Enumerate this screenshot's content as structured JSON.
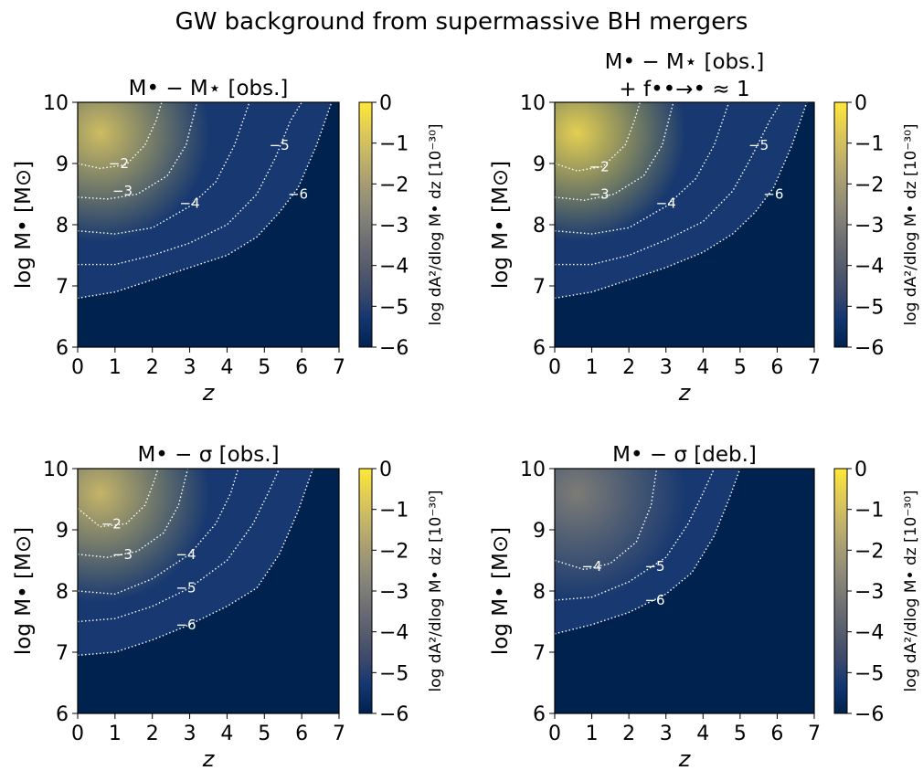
{
  "figure": {
    "suptitle": "GW background from supermassive BH mergers",
    "colormap": [
      "#00224e",
      "#123570",
      "#3b496c",
      "#575d6d",
      "#707173",
      "#8a8779",
      "#a59c74",
      "#c3b369",
      "#e1cc55",
      "#fee838"
    ]
  },
  "chart_data": [
    {
      "type": "heatmap",
      "title": "M• − M⋆ [obs.]",
      "title_line2": "",
      "xlabel": "z",
      "ylabel": "log M• [M⊙]",
      "colorbar_label": "log dA²/dlog M• dz [10⁻³⁰]",
      "xlim": [
        0,
        7
      ],
      "ylim": [
        6,
        10
      ],
      "clim": [
        -6,
        0
      ],
      "xticks": [
        "0",
        "1",
        "2",
        "3",
        "4",
        "5",
        "6",
        "7"
      ],
      "yticks": [
        "6",
        "7",
        "8",
        "9",
        "10"
      ],
      "cbticks": [
        "−6",
        "−5",
        "−4",
        "−3",
        "−2",
        "−1",
        "0"
      ],
      "peak": {
        "z": 0.6,
        "logM": 9.5,
        "value": -1.1
      },
      "contours": [
        {
          "level": "−2",
          "label_at": [
            1.1,
            9.0
          ],
          "points": [
            [
              0,
              9.0
            ],
            [
              0.6,
              8.92
            ],
            [
              1.3,
              8.98
            ],
            [
              1.8,
              9.3
            ],
            [
              2.1,
              9.7
            ],
            [
              2.25,
              10
            ]
          ]
        },
        {
          "level": "−3",
          "label_at": [
            1.2,
            8.55
          ],
          "points": [
            [
              0,
              8.45
            ],
            [
              0.8,
              8.42
            ],
            [
              1.6,
              8.5
            ],
            [
              2.4,
              8.8
            ],
            [
              2.9,
              9.3
            ],
            [
              3.2,
              10
            ]
          ]
        },
        {
          "level": "−4",
          "label_at": [
            3.0,
            8.35
          ],
          "points": [
            [
              0,
              7.9
            ],
            [
              1.0,
              7.85
            ],
            [
              2.0,
              7.95
            ],
            [
              3.0,
              8.3
            ],
            [
              3.7,
              8.7
            ],
            [
              4.2,
              9.3
            ],
            [
              4.6,
              10
            ]
          ]
        },
        {
          "level": "−5",
          "label_at": [
            5.4,
            9.3
          ],
          "points": [
            [
              0,
              7.35
            ],
            [
              1.0,
              7.35
            ],
            [
              2.0,
              7.5
            ],
            [
              3.0,
              7.7
            ],
            [
              4.0,
              8.0
            ],
            [
              4.8,
              8.5
            ],
            [
              5.3,
              9.1
            ],
            [
              5.7,
              9.7
            ],
            [
              6.0,
              10
            ]
          ]
        },
        {
          "level": "−6",
          "label_at": [
            5.9,
            8.5
          ],
          "points": [
            [
              0,
              6.8
            ],
            [
              1.0,
              6.9
            ],
            [
              2.0,
              7.1
            ],
            [
              3.0,
              7.3
            ],
            [
              4.0,
              7.5
            ],
            [
              4.8,
              7.8
            ],
            [
              5.4,
              8.2
            ],
            [
              5.9,
              8.6
            ],
            [
              6.4,
              9.3
            ],
            [
              6.8,
              10
            ]
          ]
        }
      ]
    },
    {
      "type": "heatmap",
      "title": "M• − M⋆ [obs.]",
      "title_line2": "+ f••→• ≈ 1",
      "xlabel": "z",
      "ylabel": "log M• [M⊙]",
      "colorbar_label": "log dA²/dlog M• dz [10⁻³⁰]",
      "xlim": [
        0,
        7
      ],
      "ylim": [
        6,
        10
      ],
      "clim": [
        -6,
        0
      ],
      "xticks": [
        "0",
        "1",
        "2",
        "3",
        "4",
        "5",
        "6",
        "7"
      ],
      "yticks": [
        "6",
        "7",
        "8",
        "9",
        "10"
      ],
      "cbticks": [
        "−6",
        "−5",
        "−4",
        "−3",
        "−2",
        "−1",
        "0"
      ],
      "peak": {
        "z": 0.6,
        "logM": 9.5,
        "value": -0.6
      },
      "contours": [
        {
          "level": "−2",
          "label_at": [
            1.2,
            8.95
          ],
          "points": [
            [
              0,
              9.0
            ],
            [
              0.6,
              8.88
            ],
            [
              1.3,
              8.95
            ],
            [
              1.9,
              9.3
            ],
            [
              2.15,
              9.7
            ],
            [
              2.3,
              10
            ]
          ]
        },
        {
          "level": "−3",
          "label_at": [
            1.2,
            8.5
          ],
          "points": [
            [
              0,
              8.45
            ],
            [
              0.8,
              8.4
            ],
            [
              1.6,
              8.5
            ],
            [
              2.4,
              8.8
            ],
            [
              2.9,
              9.3
            ],
            [
              3.2,
              10
            ]
          ]
        },
        {
          "level": "−4",
          "label_at": [
            3.0,
            8.35
          ],
          "points": [
            [
              0,
              7.9
            ],
            [
              1.0,
              7.85
            ],
            [
              2.0,
              7.95
            ],
            [
              3.0,
              8.3
            ],
            [
              3.8,
              8.75
            ],
            [
              4.3,
              9.3
            ],
            [
              4.7,
              10
            ]
          ]
        },
        {
          "level": "−5",
          "label_at": [
            5.5,
            9.3
          ],
          "points": [
            [
              0,
              7.35
            ],
            [
              1.0,
              7.35
            ],
            [
              2.0,
              7.5
            ],
            [
              3.0,
              7.75
            ],
            [
              4.0,
              8.05
            ],
            [
              4.8,
              8.55
            ],
            [
              5.3,
              9.1
            ],
            [
              5.8,
              9.7
            ],
            [
              6.1,
              10
            ]
          ]
        },
        {
          "level": "−6",
          "label_at": [
            5.9,
            8.5
          ],
          "points": [
            [
              0,
              6.8
            ],
            [
              1.0,
              6.9
            ],
            [
              2.0,
              7.1
            ],
            [
              3.0,
              7.3
            ],
            [
              4.0,
              7.55
            ],
            [
              4.8,
              7.85
            ],
            [
              5.4,
              8.2
            ],
            [
              5.9,
              8.6
            ],
            [
              6.4,
              9.3
            ],
            [
              6.8,
              10
            ]
          ]
        }
      ]
    },
    {
      "type": "heatmap",
      "title": "M• − σ [obs.]",
      "title_line2": "",
      "xlabel": "z",
      "ylabel": "log M• [M⊙]",
      "colorbar_label": "log dA²/dlog M• dz [10⁻³⁰]",
      "xlim": [
        0,
        7
      ],
      "ylim": [
        6,
        10
      ],
      "clim": [
        -6,
        0
      ],
      "xticks": [
        "0",
        "1",
        "2",
        "3",
        "4",
        "5",
        "6",
        "7"
      ],
      "yticks": [
        "6",
        "7",
        "8",
        "9",
        "10"
      ],
      "cbticks": [
        "−6",
        "−5",
        "−4",
        "−3",
        "−2",
        "−1",
        "0"
      ],
      "peak": {
        "z": 0.6,
        "logM": 9.6,
        "value": -1.3
      },
      "contours": [
        {
          "level": "−2",
          "label_at": [
            0.9,
            9.1
          ],
          "points": [
            [
              0,
              9.35
            ],
            [
              0.6,
              9.05
            ],
            [
              1.3,
              9.1
            ],
            [
              1.8,
              9.4
            ],
            [
              2.05,
              9.8
            ],
            [
              2.15,
              10
            ]
          ]
        },
        {
          "level": "−3",
          "label_at": [
            1.2,
            8.6
          ],
          "points": [
            [
              0,
              8.6
            ],
            [
              0.8,
              8.55
            ],
            [
              1.6,
              8.65
            ],
            [
              2.3,
              8.95
            ],
            [
              2.7,
              9.4
            ],
            [
              2.95,
              10
            ]
          ]
        },
        {
          "level": "−4",
          "label_at": [
            2.9,
            8.6
          ],
          "points": [
            [
              0,
              8.0
            ],
            [
              1.0,
              7.95
            ],
            [
              2.0,
              8.2
            ],
            [
              3.0,
              8.6
            ],
            [
              3.7,
              9.1
            ],
            [
              4.1,
              9.6
            ],
            [
              4.3,
              10
            ]
          ]
        },
        {
          "level": "−5",
          "label_at": [
            2.9,
            8.05
          ],
          "points": [
            [
              0,
              7.5
            ],
            [
              1.0,
              7.55
            ],
            [
              2.0,
              7.75
            ],
            [
              3.0,
              8.05
            ],
            [
              4.0,
              8.5
            ],
            [
              4.7,
              9.1
            ],
            [
              5.1,
              9.6
            ],
            [
              5.4,
              10
            ]
          ]
        },
        {
          "level": "−6",
          "label_at": [
            2.9,
            7.45
          ],
          "points": [
            [
              0,
              6.95
            ],
            [
              1.0,
              7.0
            ],
            [
              2.0,
              7.2
            ],
            [
              3.0,
              7.45
            ],
            [
              4.0,
              7.75
            ],
            [
              4.8,
              8.05
            ],
            [
              5.4,
              8.6
            ],
            [
              5.9,
              9.3
            ],
            [
              6.3,
              10
            ]
          ]
        }
      ]
    },
    {
      "type": "heatmap",
      "title": "M• − σ [deb.]",
      "title_line2": "",
      "xlabel": "z",
      "ylabel": "log M• [M⊙]",
      "colorbar_label": "log dA²/dlog M• dz [10⁻³⁰]",
      "xlim": [
        0,
        7
      ],
      "ylim": [
        6,
        10
      ],
      "clim": [
        -6,
        0
      ],
      "xticks": [
        "0",
        "1",
        "2",
        "3",
        "4",
        "5",
        "6",
        "7"
      ],
      "yticks": [
        "6",
        "7",
        "8",
        "9",
        "10"
      ],
      "cbticks": [
        "−6",
        "−5",
        "−4",
        "−3",
        "−2",
        "−1",
        "0"
      ],
      "peak": {
        "z": 0.6,
        "logM": 9.6,
        "value": -3.0
      },
      "contours": [
        {
          "level": "−4",
          "label_at": [
            1.0,
            8.4
          ],
          "points": [
            [
              0,
              8.5
            ],
            [
              0.8,
              8.35
            ],
            [
              1.5,
              8.45
            ],
            [
              2.2,
              8.8
            ],
            [
              2.6,
              9.4
            ],
            [
              2.75,
              10
            ]
          ]
        },
        {
          "level": "−5",
          "label_at": [
            2.7,
            8.4
          ],
          "points": [
            [
              0,
              7.85
            ],
            [
              1.0,
              7.9
            ],
            [
              2.0,
              8.15
            ],
            [
              3.0,
              8.55
            ],
            [
              3.6,
              9.1
            ],
            [
              4.0,
              9.6
            ],
            [
              4.3,
              10
            ]
          ]
        },
        {
          "level": "−6",
          "label_at": [
            2.7,
            7.85
          ],
          "points": [
            [
              0,
              7.3
            ],
            [
              1.0,
              7.45
            ],
            [
              2.0,
              7.65
            ],
            [
              3.0,
              7.95
            ],
            [
              3.7,
              8.3
            ],
            [
              4.3,
              8.9
            ],
            [
              4.7,
              9.5
            ],
            [
              5.0,
              10
            ]
          ]
        }
      ]
    }
  ]
}
